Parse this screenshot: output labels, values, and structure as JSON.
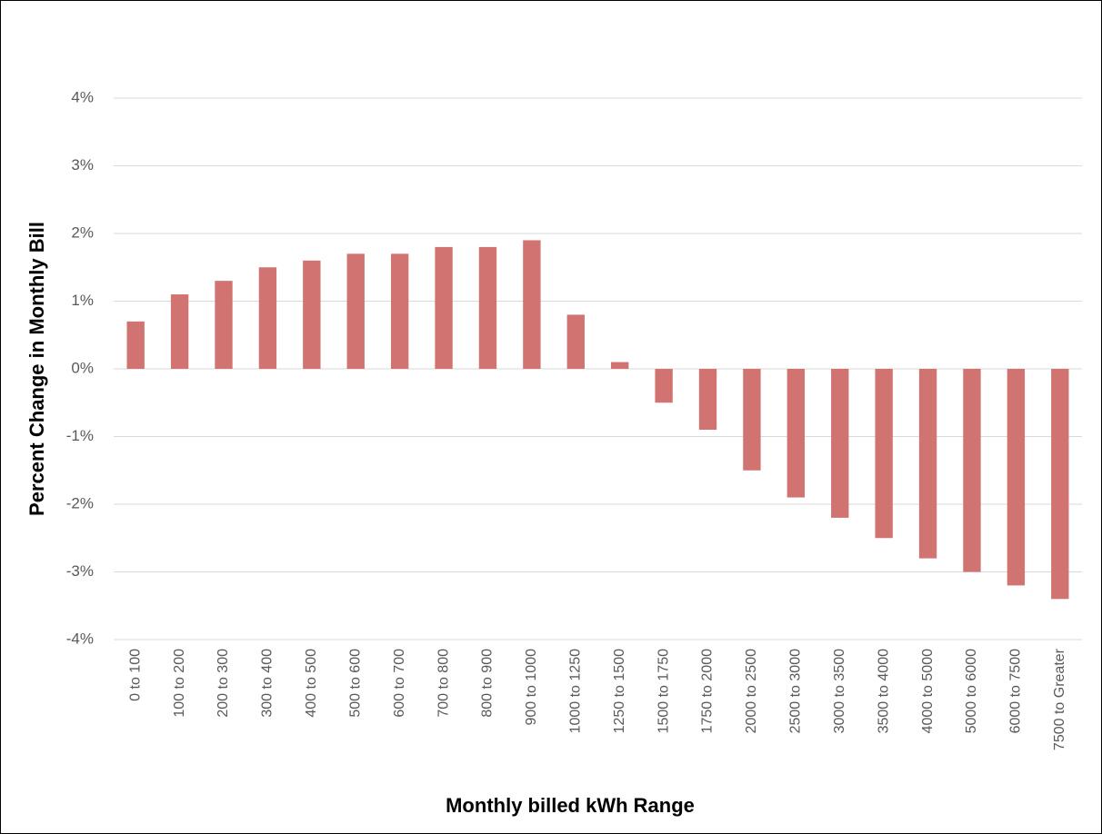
{
  "chart_data": {
    "type": "bar",
    "x_label": "Monthly billed kWh Range",
    "y_label": "Percent Change in Monthly Bill",
    "categories": [
      "0 to 100",
      "100 to 200",
      "200 to 300",
      "300 to 400",
      "400 to 500",
      "500 to 600",
      "600 to 700",
      "700 to 800",
      "800 to 900",
      "900 to 1000",
      "1000 to 1250",
      "1250 to 1500",
      "1500 to 1750",
      "1750 to 2000",
      "2000 to 2500",
      "2500 to 3000",
      "3000 to 3500",
      "3500 to 4000",
      "4000 to 5000",
      "5000 to 6000",
      "6000 to 7500",
      "7500 to Greater"
    ],
    "values": [
      0.7,
      1.1,
      1.3,
      1.5,
      1.6,
      1.7,
      1.7,
      1.8,
      1.8,
      1.9,
      0.8,
      0.1,
      -0.5,
      -0.9,
      -1.5,
      -1.9,
      -2.2,
      -2.5,
      -2.8,
      -3.0,
      -3.2,
      -3.4
    ],
    "color": "#d07371",
    "ylim": [
      -4,
      4
    ],
    "yticks": [
      {
        "value": -4,
        "label": "-4%"
      },
      {
        "value": -3,
        "label": "-3%"
      },
      {
        "value": -2,
        "label": "-2%"
      },
      {
        "value": -1,
        "label": "-1%"
      },
      {
        "value": 0,
        "label": "0%"
      },
      {
        "value": 1,
        "label": "1%"
      },
      {
        "value": 2,
        "label": "2%"
      },
      {
        "value": 3,
        "label": "3%"
      },
      {
        "value": 4,
        "label": "4%"
      }
    ],
    "grid": true
  }
}
